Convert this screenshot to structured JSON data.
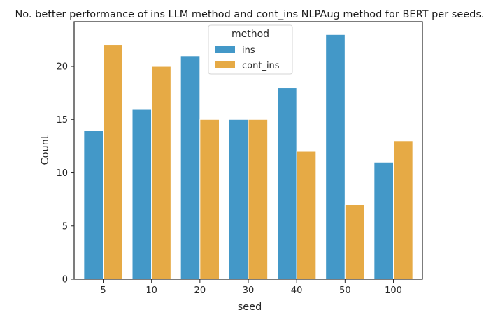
{
  "chart_data": {
    "type": "bar",
    "title": "No. better performance of ins LLM method and cont_ins NLPAug method for BERT per seeds.",
    "xlabel": "seed",
    "ylabel": "Count",
    "categories": [
      "5",
      "10",
      "20",
      "30",
      "40",
      "50",
      "100"
    ],
    "series": [
      {
        "name": "ins",
        "values": [
          14,
          16,
          21,
          15,
          18,
          23,
          11
        ],
        "color": "#4398c8"
      },
      {
        "name": "cont_ins",
        "values": [
          22,
          20,
          15,
          15,
          12,
          7,
          13
        ],
        "color": "#e6aa45"
      }
    ],
    "ylim": [
      0,
      24.2
    ],
    "yticks": [
      0,
      5,
      10,
      15,
      20
    ],
    "grid": false,
    "legend": {
      "title": "method",
      "placement": "upper-center"
    }
  }
}
